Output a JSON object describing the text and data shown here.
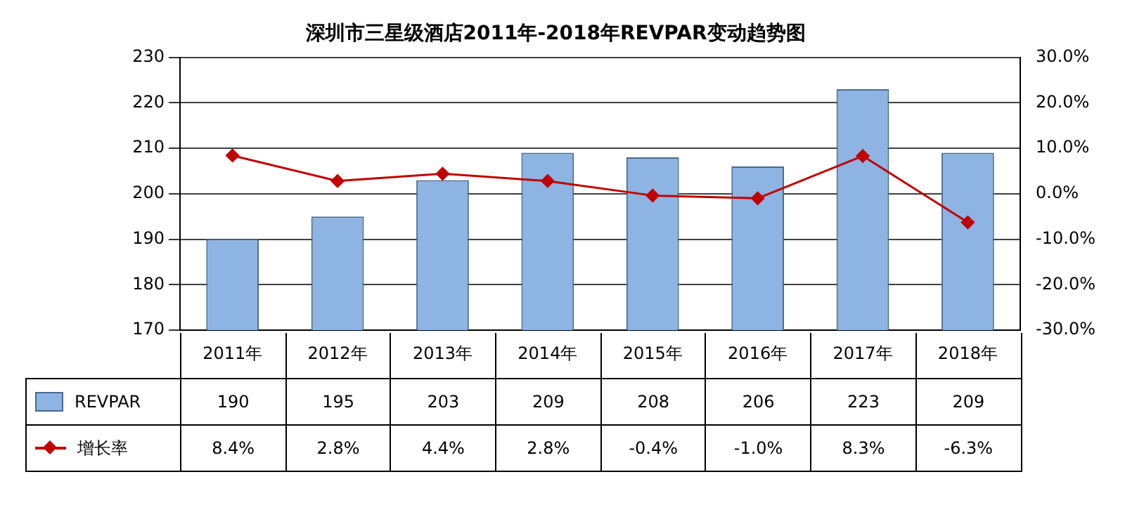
{
  "chart_data": {
    "type": "bar",
    "title": "深圳市三星级酒店2011年-2018年REVPAR变动趋势图",
    "categories": [
      "2011年",
      "2012年",
      "2013年",
      "2014年",
      "2015年",
      "2016年",
      "2017年",
      "2018年"
    ],
    "series": [
      {
        "name": "REVPAR",
        "color": "#8db4e2",
        "values": [
          190,
          195,
          203,
          209,
          208,
          206,
          223,
          209
        ],
        "value_labels": [
          "190",
          "195",
          "203",
          "209",
          "208",
          "206",
          "223",
          "209"
        ]
      },
      {
        "name": "增长率",
        "type": "line",
        "axis": "y2",
        "color": "#c00000",
        "values": [
          8.4,
          2.8,
          4.4,
          2.8,
          -0.4,
          -1.0,
          8.3,
          -6.3
        ],
        "value_labels": [
          "8.4%",
          "2.8%",
          "4.4%",
          "2.8%",
          "-0.4%",
          "-1.0%",
          "8.3%",
          "-6.3%"
        ]
      }
    ],
    "ylim": [
      170,
      230
    ],
    "yticks": [
      170,
      180,
      190,
      200,
      210,
      220,
      230
    ],
    "y2lim": [
      -30,
      30
    ],
    "y2ticks": [
      {
        "value": -30,
        "label": "-30.0%"
      },
      {
        "value": -20,
        "label": "-20.0%"
      },
      {
        "value": -10,
        "label": "-10.0%"
      },
      {
        "value": 0,
        "label": "0.0%"
      },
      {
        "value": 10,
        "label": "10.0%"
      },
      {
        "value": 20,
        "label": "20.0%"
      },
      {
        "value": 30,
        "label": "30.0%"
      }
    ],
    "grid": "y",
    "legend": "bottom left",
    "marker": "diamond",
    "line_style": "solid"
  }
}
